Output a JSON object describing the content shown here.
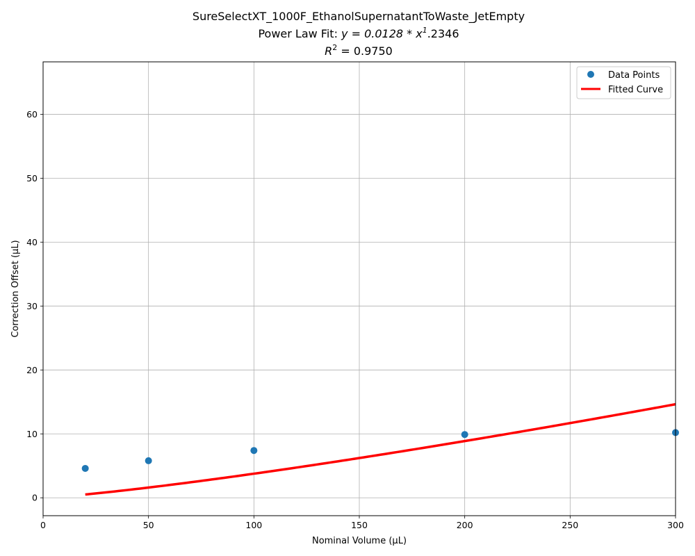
{
  "chart_data": {
    "type": "scatter",
    "title_lines": [
      "SureSelectXT_1000F_EthanolSupernatantToWaste_JetEmpty",
      "Power Law Fit: y = 0.0128 * x^1.2346",
      "R^2 = 0.9750"
    ],
    "title_line1": "SureSelectXT_1000F_EthanolSupernatantToWaste_JetEmpty",
    "title_line2_prefix": "Power Law Fit: ",
    "title_line2_math": "y = 0.0128 * x",
    "title_line2_sup": "1",
    "title_line2_suffix": ".2346",
    "title_line3_main": "R",
    "title_line3_sup": "2",
    "title_line3_suffix": " = 0.9750",
    "xlabel": "Nominal Volume (µL)",
    "ylabel": "Correction Offset (µL)",
    "xlim": [
      0,
      300
    ],
    "ylim": [
      -2.8,
      68.2
    ],
    "xticks": [
      0,
      50,
      100,
      150,
      200,
      250,
      300
    ],
    "yticks": [
      0,
      10,
      20,
      30,
      40,
      50,
      60
    ],
    "grid": true,
    "legend_position": "top-right",
    "series": [
      {
        "name": "Data Points",
        "kind": "scatter",
        "color": "#1f77b4",
        "x": [
          20,
          50,
          100,
          200,
          300
        ],
        "y": [
          4.6,
          5.8,
          7.4,
          9.9,
          10.2
        ]
      },
      {
        "name": "Fitted Curve",
        "kind": "line",
        "color": "#ff0000",
        "fit": {
          "a": 0.0128,
          "b": 1.2346
        },
        "x_range": [
          20,
          300
        ]
      }
    ]
  }
}
